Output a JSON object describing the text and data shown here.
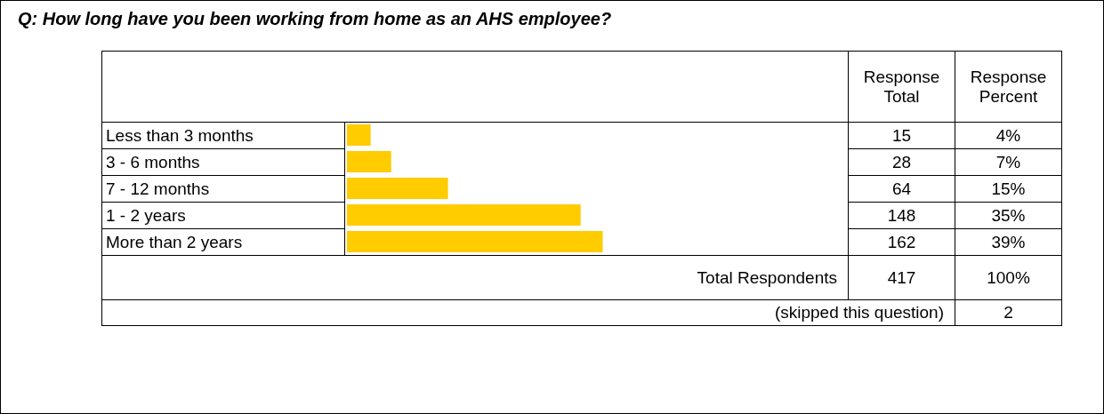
{
  "chart_data": {
    "type": "bar",
    "orientation": "horizontal",
    "title": "Q:  How long have you been working from home as an AHS employee?",
    "categories": [
      "Less than 3 months",
      "3 - 6 months",
      "7 - 12 months",
      "1 - 2 years",
      "More than 2 years"
    ],
    "values": [
      15,
      28,
      64,
      148,
      162
    ],
    "color": "#ffcc00",
    "tick_labels": false,
    "data_labels": true,
    "annotations": [
      "Response Total",
      "Response Percent",
      "4%",
      "7%",
      "15%",
      "35%",
      "39%",
      "Total Respondents",
      "417",
      "100%",
      "(skipped this question)",
      "2"
    ]
  }
}
